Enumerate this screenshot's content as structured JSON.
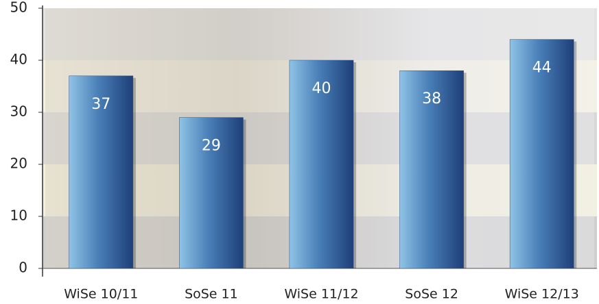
{
  "chart_data": {
    "type": "bar",
    "categories": [
      "WiSe 10/11",
      "SoSe 11",
      "WiSe 11/12",
      "SoSe 12",
      "WiSe 12/13"
    ],
    "values": [
      37,
      29,
      40,
      38,
      44
    ],
    "ylim": [
      0,
      50
    ],
    "yticks": [
      0,
      10,
      20,
      30,
      40,
      50
    ],
    "color": "#2a4f8a"
  }
}
